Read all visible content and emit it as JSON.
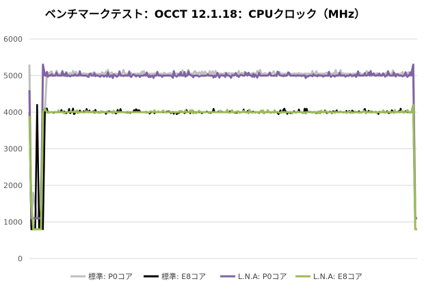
{
  "chart_data": {
    "type": "line",
    "title": "ベンチマークテスト：OCCT 12.1.18：CPUクロック（MHz）",
    "xlabel": "",
    "ylabel": "",
    "ylim": [
      0,
      6000
    ],
    "yticks": [
      "0",
      "1000",
      "2000",
      "3000",
      "4000",
      "5000",
      "6000"
    ],
    "grid": true,
    "legend_position": "bottom",
    "x_points": 200,
    "series": [
      {
        "name": "標準: P0コア",
        "color": "#bfbfbf",
        "segments": [
          {
            "x": [
              0,
              1,
              2,
              4,
              5
            ],
            "y": [
              5300,
              1100,
              1800,
              1100,
              1100
            ]
          },
          {
            "x": [
              8,
              9,
              200
            ],
            "y": [
              1100,
              5200,
              5050
            ]
          },
          {
            "x": [
              198,
              199,
              200
            ],
            "y": [
              5000,
              1100,
              1100
            ]
          }
        ],
        "noise": {
          "from": 9,
          "to": 197,
          "base": 5050,
          "amp": 100
        }
      },
      {
        "name": "標準: E8コア",
        "color": "#000000",
        "segments": [
          {
            "x": [
              0,
              1,
              3,
              4,
              5,
              6,
              7,
              8
            ],
            "y": [
              4000,
              800,
              800,
              4200,
              800,
              1400,
              800,
              4000
            ]
          },
          {
            "x": [
              197,
              198,
              199,
              200
            ],
            "y": [
              4000,
              4000,
              800,
              800
            ]
          }
        ],
        "noise": {
          "from": 8,
          "to": 197,
          "base": 4000,
          "amp": 100
        }
      },
      {
        "name": "L.N.A: P0コア",
        "color": "#8064a2",
        "segments": [
          {
            "x": [
              0,
              1,
              2,
              3,
              4,
              5,
              6,
              7,
              8
            ],
            "y": [
              4600,
              1100,
              1100,
              1100,
              1100,
              1100,
              1100,
              5300,
              5000
            ]
          },
          {
            "x": [
              197,
              198,
              199,
              200
            ],
            "y": [
              5050,
              5300,
              1100,
              1100
            ]
          }
        ],
        "noise": {
          "from": 8,
          "to": 197,
          "base": 5000,
          "amp": 120
        }
      },
      {
        "name": "L.N.A: E8コア",
        "color": "#9bbb59",
        "segments": [
          {
            "x": [
              0,
              1,
              2,
              3,
              4,
              5,
              6,
              7,
              8,
              9
            ],
            "y": [
              3900,
              1500,
              800,
              800,
              800,
              800,
              800,
              4000,
              4100,
              4000
            ]
          },
          {
            "x": [
              197,
              198,
              199,
              200
            ],
            "y": [
              4000,
              4200,
              800,
              800
            ]
          }
        ],
        "noise": {
          "from": 9,
          "to": 197,
          "base": 4000,
          "amp": 60
        }
      }
    ]
  }
}
